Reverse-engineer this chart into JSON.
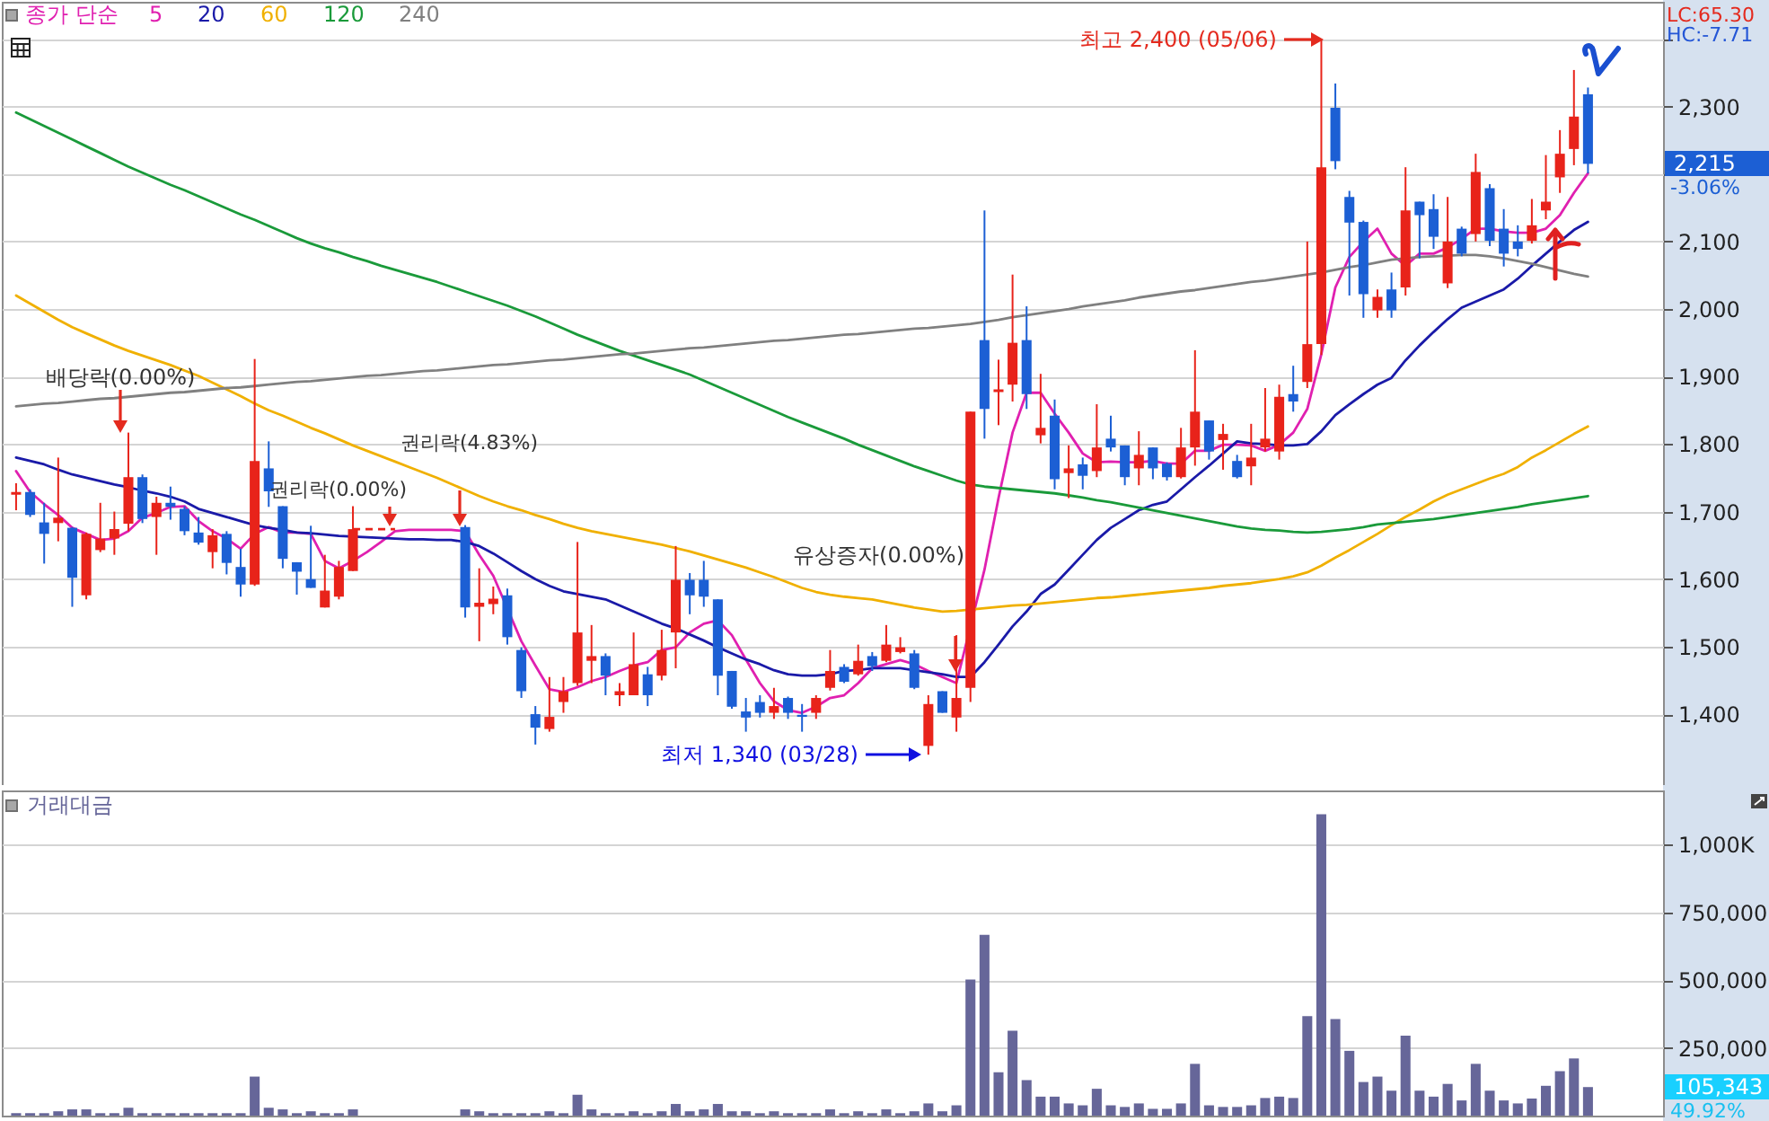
{
  "chart_data": [
    {
      "type": "candlestick",
      "legend_title": "종가 단순",
      "legend": "top left",
      "grid": "y",
      "tick_labels": "y",
      "categories": [
        null,
        null,
        null,
        null,
        null,
        null,
        null,
        null,
        null,
        null,
        null,
        null,
        null,
        null,
        null,
        null,
        null,
        null,
        null,
        null,
        null,
        null,
        null,
        null,
        null,
        null,
        null,
        null,
        null,
        null,
        null,
        null,
        null,
        null,
        null,
        null,
        null,
        null,
        null,
        null,
        null,
        null,
        null,
        null,
        null,
        null,
        null,
        null,
        null,
        null,
        null,
        null,
        null,
        null,
        null,
        null,
        null,
        null,
        null,
        null,
        null,
        null,
        null,
        null,
        null,
        null,
        null,
        null,
        null,
        null,
        null,
        null,
        null,
        null,
        null,
        null,
        null,
        null,
        null,
        null,
        null,
        null,
        null,
        null,
        null,
        null,
        null,
        null,
        null,
        null,
        null,
        null,
        null,
        null,
        null,
        null,
        null,
        null,
        null,
        null,
        null,
        null,
        null,
        null,
        null,
        null,
        null,
        null,
        null,
        null,
        null,
        null,
        null
      ],
      "ohlc": [
        [
          1725,
          1742,
          1702,
          1729
        ],
        [
          1729,
          1733,
          1692,
          1695
        ],
        [
          1684,
          1713,
          1623,
          1667
        ],
        [
          1683,
          1780,
          1656,
          1691
        ],
        [
          1676,
          1677,
          1559,
          1602
        ],
        [
          1576,
          1669,
          1570,
          1667
        ],
        [
          1643,
          1713,
          1640,
          1660
        ],
        [
          1660,
          1700,
          1636,
          1674
        ],
        [
          1682,
          1817,
          1671,
          1751
        ],
        [
          1751,
          1755,
          1683,
          1689
        ],
        [
          1692,
          1722,
          1636,
          1713
        ],
        [
          1713,
          1737,
          1688,
          1707
        ],
        [
          1704,
          1708,
          1665,
          1671
        ],
        [
          1669,
          1692,
          1651,
          1654
        ],
        [
          1640,
          1674,
          1616,
          1665
        ],
        [
          1667,
          1671,
          1607,
          1624
        ],
        [
          1618,
          1645,
          1574,
          1592
        ],
        [
          1592,
          1926,
          1590,
          1775
        ],
        [
          1764,
          1804,
          1707,
          1730
        ],
        [
          1708,
          1708,
          1616,
          1630
        ],
        [
          1625,
          1625,
          1577,
          1611
        ],
        [
          1600,
          1679,
          1587,
          1587
        ],
        [
          1558,
          1636,
          1558,
          1583
        ],
        [
          1574,
          1627,
          1570,
          1618
        ],
        [
          1612,
          1708,
          1612,
          1674
        ],
        null,
        null,
        null,
        null,
        null,
        null,
        null,
        [
          1677,
          1680,
          1543,
          1558
        ],
        [
          1559,
          1616,
          1508,
          1565
        ],
        [
          1563,
          1589,
          1548,
          1571
        ],
        [
          1576,
          1586,
          1503,
          1514
        ],
        [
          1495,
          1499,
          1424,
          1434
        ],
        [
          1400,
          1412,
          1355,
          1380
        ],
        [
          1378,
          1455,
          1374,
          1396
        ],
        [
          1418,
          1455,
          1402,
          1434
        ],
        [
          1446,
          1655,
          1442,
          1521
        ],
        [
          1479,
          1532,
          1446,
          1486
        ],
        [
          1486,
          1490,
          1428,
          1457
        ],
        [
          1428,
          1446,
          1412,
          1434
        ],
        [
          1428,
          1521,
          1428,
          1474
        ],
        [
          1459,
          1470,
          1412,
          1428
        ],
        [
          1457,
          1525,
          1450,
          1495
        ],
        [
          1521,
          1649,
          1468,
          1599
        ],
        [
          1599,
          1609,
          1548,
          1576
        ],
        [
          1599,
          1627,
          1559,
          1574
        ],
        [
          1570,
          1570,
          1428,
          1457
        ],
        [
          1464,
          1464,
          1408,
          1411
        ],
        [
          1404,
          1424,
          1374,
          1395
        ],
        [
          1418,
          1428,
          1395,
          1402
        ],
        [
          1402,
          1439,
          1393,
          1412
        ],
        [
          1424,
          1426,
          1393,
          1402
        ],
        [
          1399,
          1415,
          1374,
          1396
        ],
        [
          1402,
          1428,
          1393,
          1424
        ],
        [
          1439,
          1495,
          1435,
          1464
        ],
        [
          1470,
          1474,
          1446,
          1448
        ],
        [
          1459,
          1503,
          1457,
          1479
        ],
        [
          1486,
          1492,
          1464,
          1471
        ],
        [
          1479,
          1532,
          1477,
          1503
        ],
        [
          1492,
          1514,
          1490,
          1499
        ],
        [
          1490,
          1495,
          1437,
          1439
        ],
        [
          1353,
          1428,
          1340,
          1415
        ],
        [
          1434,
          1434,
          1402,
          1402
        ],
        [
          1395,
          1517,
          1374,
          1424
        ],
        [
          1439,
          1848,
          1418,
          1848
        ],
        [
          1954,
          2146,
          1808,
          1852
        ],
        [
          1877,
          1925,
          1828,
          1881
        ],
        [
          1888,
          2051,
          1863,
          1950
        ],
        [
          1954,
          2004,
          1852,
          1874
        ],
        [
          1813,
          1904,
          1801,
          1824
        ],
        [
          1842,
          1866,
          1733,
          1748
        ],
        [
          1757,
          1798,
          1720,
          1764
        ],
        [
          1770,
          1780,
          1733,
          1753
        ],
        [
          1760,
          1859,
          1751,
          1795
        ],
        [
          1808,
          1842,
          1789,
          1795
        ],
        [
          1798,
          1798,
          1739,
          1751
        ],
        [
          1764,
          1819,
          1739,
          1784
        ],
        [
          1795,
          1795,
          1748,
          1764
        ],
        [
          1771,
          1773,
          1746,
          1751
        ],
        [
          1751,
          1824,
          1749,
          1795
        ],
        [
          1795,
          1939,
          1768,
          1848
        ],
        [
          1835,
          1835,
          1777,
          1789
        ],
        [
          1806,
          1830,
          1762,
          1815
        ],
        [
          1775,
          1784,
          1749,
          1751
        ],
        [
          1767,
          1830,
          1739,
          1780
        ],
        [
          1795,
          1883,
          1789,
          1808
        ],
        [
          1789,
          1888,
          1777,
          1870
        ],
        [
          1874,
          1916,
          1848,
          1863
        ],
        [
          1892,
          2100,
          1883,
          1948
        ],
        [
          1948,
          2400,
          1932,
          2210
        ],
        [
          2298,
          2334,
          2207,
          2219
        ],
        [
          2166,
          2175,
          2020,
          2128
        ],
        [
          2129,
          2131,
          1987,
          2022
        ],
        [
          1998,
          2029,
          1987,
          2018
        ],
        [
          2029,
          2054,
          1987,
          1998
        ],
        [
          2032,
          2210,
          2020,
          2146
        ],
        [
          2159,
          2159,
          2075,
          2139
        ],
        [
          2148,
          2170,
          2089,
          2107
        ],
        [
          2038,
          2166,
          2031,
          2100
        ],
        [
          2119,
          2122,
          2078,
          2082
        ],
        [
          2111,
          2230,
          2100,
          2203
        ],
        [
          2179,
          2185,
          2093,
          2101
        ],
        [
          2119,
          2148,
          2063,
          2082
        ],
        [
          2100,
          2124,
          2078,
          2089
        ],
        [
          2101,
          2163,
          2097,
          2124
        ],
        [
          2146,
          2228,
          2133,
          2159
        ],
        [
          2195,
          2265,
          2172,
          2230
        ],
        [
          2237,
          2354,
          2213,
          2285
        ],
        [
          2318,
          2328,
          2201,
          2215
        ]
      ],
      "colors": [
        "#e8231a",
        "#1c5fd4",
        "#1c5fd4",
        "#e8231a",
        "#1c5fd4",
        "#e8231a",
        "#e8231a",
        "#e8231a",
        "#e8231a",
        "#1c5fd4",
        "#e8231a",
        "#1c5fd4",
        "#1c5fd4",
        "#1c5fd4",
        "#e8231a",
        "#1c5fd4",
        "#1c5fd4",
        "#e8231a",
        "#1c5fd4",
        "#1c5fd4",
        "#1c5fd4",
        "#1c5fd4",
        "#e8231a",
        "#e8231a",
        "#e8231a",
        null,
        null,
        null,
        null,
        null,
        null,
        null,
        "#1c5fd4",
        "#e8231a",
        "#e8231a",
        "#1c5fd4",
        "#1c5fd4",
        "#1c5fd4",
        "#e8231a",
        "#e8231a",
        "#e8231a",
        "#e8231a",
        "#1c5fd4",
        "#e8231a",
        "#e8231a",
        "#1c5fd4",
        "#e8231a",
        "#e8231a",
        "#1c5fd4",
        "#1c5fd4",
        "#1c5fd4",
        "#1c5fd4",
        "#1c5fd4",
        "#1c5fd4",
        "#e8231a",
        "#1c5fd4",
        "#1c5fd4",
        "#e8231a",
        "#e8231a",
        "#1c5fd4",
        "#e8231a",
        "#1c5fd4",
        "#e8231a",
        "#e8231a",
        "#1c5fd4",
        "#e8231a",
        "#1c5fd4",
        "#e8231a",
        "#e8231a",
        "#1c5fd4",
        "#e8231a",
        "#e8231a",
        "#1c5fd4",
        "#e8231a",
        "#1c5fd4",
        "#e8231a",
        "#1c5fd4",
        "#e8231a",
        "#1c5fd4",
        "#1c5fd4",
        "#e8231a",
        "#1c5fd4",
        "#1c5fd4",
        "#e8231a",
        "#e8231a",
        "#1c5fd4",
        "#e8231a",
        "#1c5fd4",
        "#e8231a",
        "#e8231a",
        "#e8231a",
        "#1c5fd4",
        "#e8231a",
        "#e8231a",
        "#1c5fd4",
        "#1c5fd4",
        "#1c5fd4",
        "#e8231a",
        "#1c5fd4",
        "#e8231a",
        "#1c5fd4",
        "#1c5fd4",
        "#e8231a",
        "#1c5fd4",
        "#e8231a",
        "#1c5fd4",
        "#1c5fd4",
        "#1c5fd4",
        "#e8231a",
        "#e8231a",
        "#e8231a",
        "#e8231a",
        "#1c5fd4"
      ],
      "series": [
        {
          "name": "5",
          "type": "line",
          "color": "#e020b0",
          "values": [
            1760,
            1729,
            1711,
            1695,
            1676,
            1667,
            1658,
            1660,
            1671,
            1691,
            1698,
            1707,
            1708,
            1686,
            1671,
            1660,
            1645,
            1667,
            1677,
            1669,
            1669,
            1667,
            1627,
            1616,
            1627,
            1640,
            1655,
            1671,
            1673,
            1673,
            1673,
            1673,
            1671,
            1636,
            1605,
            null,
            1508,
            1472,
            1437,
            1433,
            1440,
            1449,
            1455,
            1464,
            1472,
            1477,
            1495,
            1499,
            1521,
            1534,
            1539,
            1517,
            1481,
            1446,
            1419,
            1406,
            1402,
            1411,
            1424,
            1428,
            1446,
            1468,
            1474,
            1480,
            1474,
            1464,
            1455,
            1446,
            null,
            1614,
            1720,
            1817,
            1876,
            1876,
            1845,
            1817,
            1786,
            1773,
            1774,
            1773,
            1773,
            1775,
            1771,
            1771,
            1790,
            1790,
            1799,
            1799,
            1798,
            1790,
            1799,
            1817,
            1852,
            1933,
            2032,
            2077,
            2100,
            2119,
            2082,
            2064,
            2082,
            2082,
            2091,
            2104,
            2119,
            2119,
            2115,
            2113,
            2113,
            2119,
            2139,
            2172,
            2201
          ]
        },
        {
          "name": "20",
          "type": "line",
          "color": "#1a1aa8",
          "values": [
            1780,
            1775,
            1770,
            1762,
            1755,
            1750,
            1745,
            1740,
            1736,
            1731,
            1727,
            1722,
            1715,
            1704,
            1698,
            1692,
            1686,
            1680,
            1676,
            1673,
            1669,
            1668,
            1666,
            1664,
            1663,
            1662,
            1661,
            1660,
            1659,
            1659,
            1658,
            1658,
            1655,
            1649,
            1638,
            1625,
            1612,
            1600,
            1590,
            1582,
            1578,
            1574,
            1570,
            1561,
            1552,
            1543,
            1534,
            1527,
            1518,
            1509,
            1499,
            1490,
            1481,
            1474,
            1465,
            1459,
            1457,
            1457,
            1459,
            1464,
            1465,
            1468,
            1468,
            1468,
            1465,
            1462,
            1459,
            1455,
            1455,
            1477,
            1503,
            1530,
            1552,
            1578,
            1592,
            1614,
            1636,
            1658,
            1676,
            1689,
            1702,
            1710,
            1715,
            1733,
            1751,
            1768,
            1786,
            1804,
            1801,
            1800,
            1798,
            1798,
            1800,
            1819,
            1843,
            1859,
            1874,
            1888,
            1898,
            1924,
            1946,
            1966,
            1985,
            2002,
            2011,
            2020,
            2029,
            2045,
            2064,
            2082,
            2100,
            2117,
            2129
          ]
        },
        {
          "name": "60",
          "type": "line",
          "color": "#f0b000",
          "values": [
            2020,
            2008,
            1996,
            1984,
            1973,
            1964,
            1955,
            1946,
            1938,
            1931,
            1924,
            1917,
            1909,
            1901,
            1891,
            1881,
            1871,
            1860,
            1850,
            1842,
            1833,
            1824,
            1816,
            1807,
            1798,
            1790,
            1782,
            1774,
            1766,
            1758,
            1750,
            1741,
            1732,
            1723,
            1715,
            1708,
            1702,
            1695,
            1689,
            1682,
            1676,
            1671,
            1667,
            1663,
            1659,
            1655,
            1651,
            1646,
            1641,
            1635,
            1629,
            1623,
            1617,
            1610,
            1603,
            1595,
            1587,
            1581,
            1577,
            1574,
            1572,
            1570,
            1566,
            1562,
            1558,
            1555,
            1552,
            1553,
            1555,
            1557,
            1559,
            1561,
            1562,
            1564,
            1566,
            1568,
            1570,
            1572,
            1573,
            1575,
            1577,
            1579,
            1581,
            1583,
            1585,
            1587,
            1590,
            1592,
            1594,
            1597,
            1600,
            1604,
            1610,
            1620,
            1632,
            1643,
            1655,
            1667,
            1680,
            1692,
            1703,
            1715,
            1725,
            1733,
            1741,
            1749,
            1756,
            1766,
            1780,
            1791,
            1803,
            1815,
            1826
          ]
        },
        {
          "name": "120",
          "type": "line",
          "color": "#1a9a3a",
          "values": [
            2291,
            2281,
            2271,
            2261,
            2251,
            2241,
            2231,
            2221,
            2211,
            2202,
            2193,
            2184,
            2176,
            2167,
            2158,
            2149,
            2140,
            2132,
            2123,
            2114,
            2105,
            2097,
            2090,
            2084,
            2077,
            2071,
            2064,
            2058,
            2052,
            2046,
            2040,
            2033,
            2026,
            2019,
            2012,
            2005,
            1997,
            1989,
            1980,
            1971,
            1962,
            1954,
            1946,
            1938,
            1931,
            1924,
            1917,
            1910,
            1903,
            1894,
            1885,
            1876,
            1867,
            1858,
            1849,
            1840,
            1832,
            1824,
            1816,
            1808,
            1799,
            1791,
            1783,
            1775,
            1767,
            1760,
            1753,
            1746,
            1740,
            1737,
            1735,
            1733,
            1731,
            1729,
            1727,
            1724,
            1721,
            1717,
            1714,
            1710,
            1706,
            1702,
            1698,
            1694,
            1690,
            1686,
            1682,
            1678,
            1675,
            1673,
            1672,
            1670,
            1669,
            1670,
            1672,
            1674,
            1677,
            1681,
            1683,
            1685,
            1687,
            1689,
            1692,
            1695,
            1698,
            1701,
            1704,
            1707,
            1711,
            1714,
            1717,
            1720,
            1723
          ]
        },
        {
          "name": "240",
          "type": "line",
          "color": "#808080",
          "values": [
            1856,
            1858,
            1860,
            1861,
            1863,
            1865,
            1867,
            1868,
            1870,
            1872,
            1874,
            1876,
            1877,
            1879,
            1881,
            1883,
            1884,
            1886,
            1888,
            1890,
            1892,
            1893,
            1895,
            1897,
            1899,
            1901,
            1902,
            1904,
            1906,
            1908,
            1909,
            1911,
            1913,
            1915,
            1917,
            1918,
            1920,
            1922,
            1924,
            1925,
            1927,
            1929,
            1931,
            1933,
            1934,
            1936,
            1938,
            1940,
            1942,
            1943,
            1945,
            1947,
            1949,
            1951,
            1953,
            1954,
            1956,
            1958,
            1960,
            1962,
            1963,
            1965,
            1967,
            1969,
            1971,
            1972,
            1974,
            1976,
            1978,
            1981,
            1984,
            1988,
            1991,
            1994,
            1997,
            2000,
            2004,
            2007,
            2010,
            2013,
            2017,
            2020,
            2023,
            2026,
            2028,
            2031,
            2034,
            2037,
            2040,
            2042,
            2045,
            2048,
            2051,
            2054,
            2058,
            2062,
            2065,
            2069,
            2073,
            2075,
            2077,
            2078,
            2079,
            2080,
            2080,
            2078,
            2075,
            2071,
            2067,
            2062,
            2057,
            2052,
            2048
          ]
        },
        {
          "type": "line",
          "color": "#e8231a",
          "line_style": "dashed",
          "values": [
            null,
            null,
            null,
            null,
            null,
            null,
            null,
            null,
            null,
            null,
            null,
            null,
            null,
            null,
            null,
            null,
            null,
            null,
            null,
            null,
            null,
            null,
            null,
            null,
            1674,
            1674,
            1674,
            1674,
            null,
            null,
            null,
            null,
            null,
            null,
            null,
            null,
            null,
            null,
            null,
            null,
            null,
            null,
            null,
            null,
            null,
            null,
            null,
            null,
            null,
            null,
            null,
            null,
            null,
            null,
            null,
            null,
            null,
            null,
            null,
            null,
            null,
            null,
            null,
            null,
            null,
            null,
            null,
            null,
            null,
            null,
            null,
            null,
            null,
            null,
            null,
            null,
            null,
            null,
            null,
            null,
            null,
            null,
            null,
            null,
            null,
            null,
            null,
            null,
            null,
            null,
            null,
            null,
            null,
            null,
            null,
            null,
            null,
            null,
            null,
            null,
            null,
            null,
            null,
            null,
            null,
            null,
            null,
            null,
            null,
            null,
            null,
            null,
            null
          ]
        }
      ],
      "ylim": [
        1295,
        2455
      ],
      "yticks": [
        {
          "value": 2400,
          "label": null
        },
        {
          "value": 2300,
          "label": "2,300"
        },
        {
          "value": 2200,
          "label": null
        },
        {
          "value": 2100,
          "label": "2,100"
        },
        {
          "value": 2000,
          "label": "2,000"
        },
        {
          "value": 1900,
          "label": "1,900"
        },
        {
          "value": 1800,
          "label": "1,800"
        },
        {
          "value": 1700,
          "label": "1,700"
        },
        {
          "value": 1600,
          "label": "1,600"
        },
        {
          "value": 1500,
          "label": "1,500"
        },
        {
          "value": 1400,
          "label": "1,400"
        }
      ],
      "annotations": [
        "LC:65.30",
        "HC:-7.71",
        "2,215",
        "-3.06%",
        "배당락(0.00%)",
        "권리락(0.00%)",
        "권리락(4.83%)",
        "유상증자(0.00%)",
        "최저 1,340 (03/28)",
        "최고 2,400 (05/06)"
      ]
    },
    {
      "type": "bar",
      "title": "거래대금",
      "grid": "y",
      "tick_labels": "y",
      "color": "#666699",
      "categories": [
        null,
        null,
        null,
        null,
        null,
        null,
        null,
        null,
        null,
        null,
        null,
        null,
        null,
        null,
        null,
        null,
        null,
        null,
        null,
        null,
        null,
        null,
        null,
        null,
        null,
        null,
        null,
        null,
        null,
        null,
        null,
        null,
        null,
        null,
        null,
        null,
        null,
        null,
        null,
        null,
        null,
        null,
        null,
        null,
        null,
        null,
        null,
        null,
        null,
        null,
        null,
        null,
        null,
        null,
        null,
        null,
        null,
        null,
        null,
        null,
        null,
        null,
        null,
        null,
        null,
        null,
        null,
        null,
        null,
        null,
        null,
        null,
        null,
        null,
        null,
        null,
        null,
        null,
        null,
        null,
        null,
        null,
        null,
        null,
        null,
        null,
        null,
        null,
        null,
        null,
        null,
        null,
        null,
        null,
        null,
        null,
        null,
        null,
        null,
        null,
        null,
        null,
        null,
        null,
        null,
        null,
        null,
        null,
        null,
        null,
        null,
        null,
        null
      ],
      "values": [
        9000,
        9000,
        9000,
        16000,
        23000,
        23000,
        9000,
        9000,
        29000,
        9000,
        9000,
        9000,
        9000,
        9000,
        9000,
        9000,
        9000,
        144000,
        29000,
        23000,
        9000,
        16000,
        9000,
        9000,
        23000,
        null,
        null,
        null,
        null,
        null,
        null,
        null,
        23000,
        16000,
        9000,
        9000,
        9000,
        9000,
        16000,
        9000,
        77000,
        23000,
        9000,
        9000,
        16000,
        9000,
        16000,
        43000,
        16000,
        23000,
        43000,
        16000,
        16000,
        9000,
        16000,
        9000,
        9000,
        9000,
        23000,
        9000,
        16000,
        9000,
        23000,
        9000,
        16000,
        45000,
        16000,
        38000,
        502000,
        667000,
        160000,
        313000,
        131000,
        70000,
        70000,
        45000,
        38000,
        99000,
        38000,
        32000,
        45000,
        25000,
        25000,
        45000,
        191000,
        38000,
        32000,
        32000,
        38000,
        65000,
        70000,
        65000,
        367000,
        1112000,
        356000,
        239000,
        124000,
        144000,
        92000,
        295000,
        92000,
        70000,
        117000,
        56000,
        191000,
        92000,
        56000,
        45000,
        63000,
        110000,
        164000,
        211000,
        105343
      ],
      "ylim": [
        0,
        1200000
      ],
      "yticks": [
        {
          "value": 250000,
          "label": "250,000"
        },
        {
          "value": 500000,
          "label": "500,000"
        },
        {
          "value": 750000,
          "label": "750,000"
        },
        {
          "value": 1000000,
          "label": "1,000K"
        }
      ],
      "annotations": [
        "105,343",
        "49.92%"
      ]
    }
  ]
}
